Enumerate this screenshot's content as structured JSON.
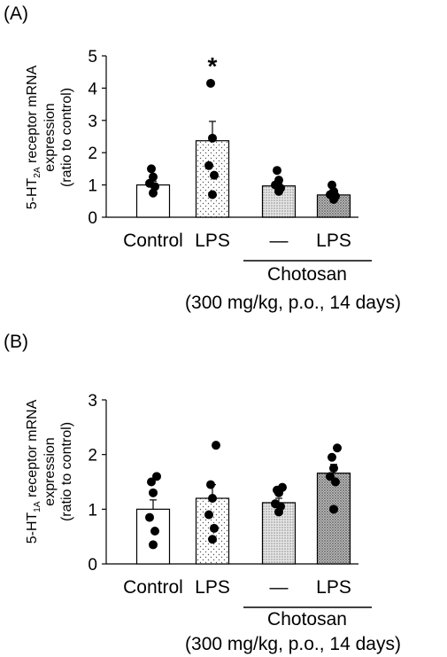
{
  "chart_data": [
    {
      "type": "bar",
      "panel_label": "(A)",
      "ylabel_lines": [
        "5-HT2A receptor mRNA",
        "expression",
        "(ratio to control)"
      ],
      "ylabel_main": "5-HT",
      "ylabel_subscript": "2A",
      "ylabel_rest": " receptor mRNA",
      "ylim": [
        0,
        5
      ],
      "yticks": [
        "0",
        "1",
        "2",
        "3",
        "4",
        "5"
      ],
      "categories": [
        "Control",
        "LPS",
        "—",
        "LPS"
      ],
      "values": [
        1.0,
        2.37,
        0.97,
        0.69
      ],
      "sem": [
        0.12,
        0.6,
        0.08,
        0.07
      ],
      "fills": [
        "white",
        "sparse-dots",
        "dense-dots",
        "dark-dots"
      ],
      "points": [
        [
          0.75,
          0.95,
          1.05,
          1.25,
          1.5
        ],
        [
          0.7,
          1.3,
          1.6,
          2.45,
          4.15
        ],
        [
          0.8,
          0.9,
          1.0,
          1.15,
          1.45
        ],
        [
          0.55,
          0.65,
          0.7,
          0.8,
          1.0
        ]
      ],
      "significance": [
        {
          "index": 1,
          "label": "*"
        }
      ],
      "group_label": "Chotosan",
      "group_note": "(300 mg/kg, p.o., 14 days)",
      "group_indices": [
        2,
        3
      ],
      "grid": false
    },
    {
      "type": "bar",
      "panel_label": "(B)",
      "ylabel_lines": [
        "5-HT1A receptor mRNA",
        "expression",
        "(ratio to control)"
      ],
      "ylabel_main": "5-HT",
      "ylabel_subscript": "1A",
      "ylabel_rest": " receptor mRNA",
      "ylim": [
        0,
        3
      ],
      "yticks": [
        "0",
        "1",
        "2",
        "3"
      ],
      "categories": [
        "Control",
        "LPS",
        "—",
        "LPS"
      ],
      "values": [
        1.0,
        1.2,
        1.12,
        1.66
      ],
      "sem": [
        0.17,
        0.25,
        0.08,
        0.16
      ],
      "fills": [
        "white",
        "sparse-dots",
        "dense-dots",
        "dark-dots"
      ],
      "points": [
        [
          0.35,
          0.6,
          0.85,
          1.3,
          1.5,
          1.6
        ],
        [
          0.45,
          0.65,
          0.9,
          1.2,
          1.45,
          2.17
        ],
        [
          0.95,
          1.05,
          1.1,
          1.3,
          1.35,
          1.4
        ],
        [
          1.0,
          1.5,
          1.6,
          1.75,
          1.95,
          2.12
        ]
      ],
      "significance": [],
      "group_label": "Chotosan",
      "group_note": "(300 mg/kg, p.o., 14 days)",
      "group_indices": [
        2,
        3
      ],
      "grid": false
    }
  ]
}
